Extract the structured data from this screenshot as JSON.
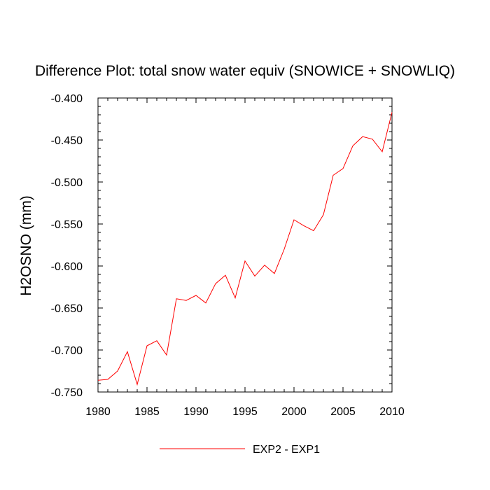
{
  "chart_data": {
    "type": "line",
    "title": "Difference Plot: total snow water equiv (SNOWICE + SNOWLIQ)",
    "xlabel": "",
    "ylabel": "H2OSNO  (mm)",
    "xlim": [
      1980,
      2010
    ],
    "ylim": [
      -0.75,
      -0.4
    ],
    "xticks": [
      1980,
      1985,
      1990,
      1995,
      2000,
      2005,
      2010
    ],
    "yticks": [
      -0.4,
      -0.45,
      -0.5,
      -0.55,
      -0.6,
      -0.65,
      -0.7,
      -0.75
    ],
    "ytick_labels": [
      "-0.400",
      "-0.450",
      "-0.500",
      "-0.550",
      "-0.600",
      "-0.650",
      "-0.700",
      "-0.750"
    ],
    "xtick_labels": [
      "1980",
      "1985",
      "1990",
      "1995",
      "2000",
      "2005",
      "2010"
    ],
    "grid": false,
    "legend_position": "bottom-center",
    "series": [
      {
        "name": "EXP2 - EXP1",
        "color": "#ff0000",
        "x": [
          1980,
          1981,
          1982,
          1983,
          1984,
          1985,
          1986,
          1987,
          1988,
          1989,
          1990,
          1991,
          1992,
          1993,
          1994,
          1995,
          1996,
          1997,
          1998,
          1999,
          2000,
          2001,
          2002,
          2003,
          2004,
          2005,
          2006,
          2007,
          2008,
          2009,
          2010
        ],
        "y": [
          -0.736,
          -0.735,
          -0.725,
          -0.702,
          -0.741,
          -0.695,
          -0.689,
          -0.706,
          -0.639,
          -0.641,
          -0.635,
          -0.644,
          -0.621,
          -0.611,
          -0.638,
          -0.594,
          -0.612,
          -0.599,
          -0.609,
          -0.58,
          -0.545,
          -0.552,
          -0.558,
          -0.539,
          -0.492,
          -0.484,
          -0.457,
          -0.446,
          -0.449,
          -0.464,
          -0.417
        ]
      }
    ]
  }
}
